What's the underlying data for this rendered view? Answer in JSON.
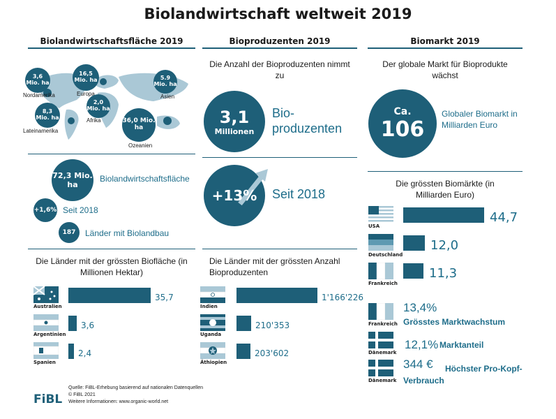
{
  "title": "Biolandwirtschaft weltweit 2019",
  "col1": {
    "heading": "Biolandwirtschaftsfläche 2019",
    "regions": [
      {
        "value": "3,6 Mio. ha",
        "label": "Nordamerika"
      },
      {
        "value": "16,5 Mio. ha",
        "label": "Europa"
      },
      {
        "value": "5.9 Mio. ha",
        "label": "Asien"
      },
      {
        "value": "8,3 Mio. ha",
        "label": "Lateinamerika"
      },
      {
        "value": "2,0 Mio. ha",
        "label": "Afrika"
      },
      {
        "value": "36,0 Mio. ha",
        "label": "Ozeanien"
      }
    ],
    "total_value": "72,3 Mio. ha",
    "total_label": "Biolandwirtschaftsfläche",
    "growth_value": "+1,6%",
    "growth_label": "Seit 2018",
    "countries_value": "187",
    "countries_label": "Länder mit Biolandbau",
    "chart_heading": "Die Länder mit der grössten Biofläche (in Millionen Hektar)"
  },
  "col2": {
    "heading": "Bioproduzenten 2019",
    "subtitle": "Die Anzahl der Bioproduzenten nimmt zu",
    "producers_value": "3,1",
    "producers_unit": "Millionen",
    "producers_label": "Bio-produzenten",
    "growth_value": "+13%",
    "growth_label": "Seit 2018",
    "chart_heading": "Die Länder mit der grössten Anzahl Bioproduzenten"
  },
  "col3": {
    "heading": "Biomarkt 2019",
    "subtitle": "Der globale Markt für Bioprodukte wächst",
    "market_prefix": "Ca.",
    "market_value": "106",
    "market_label": "Globaler Biomarkt in Milliarden Euro",
    "chart_heading": "Die grössten Biomärkte (in Milliarden Euro)",
    "facts": [
      {
        "country": "Frankreich",
        "value": "13,4%",
        "label": "Grösstes Marktwachstum"
      },
      {
        "country": "Dänemark",
        "value": "12,1%",
        "label": "Marktanteil"
      },
      {
        "country": "Dänemark",
        "value": "344 €",
        "label": "Höchster Pro-Kopf-Verbrauch"
      }
    ]
  },
  "footer": {
    "logo": "FiBL",
    "source": "Quelle: FiBL-Erhebung basierend auf nationalen Datenquellen",
    "copyright": "© FiBL 2021",
    "info": "Weitere Informationen: www.organic-world.net"
  },
  "colors": {
    "primary": "#1e5f78",
    "accent": "#1e6d8a",
    "light": "#aac8d6"
  },
  "chart_data": [
    {
      "type": "bar",
      "title": "Die Länder mit der grössten Biofläche (in Millionen Hektar)",
      "categories": [
        "Australien",
        "Argentinien",
        "Spanien"
      ],
      "values": [
        35.7,
        3.6,
        2.4
      ],
      "labels": [
        "35,7",
        "3,6",
        "2,4"
      ]
    },
    {
      "type": "bar",
      "title": "Die Länder mit der grössten Anzahl Bioproduzenten",
      "categories": [
        "Indien",
        "Uganda",
        "Äthiopien"
      ],
      "values": [
        1166226,
        210353,
        203602
      ],
      "labels": [
        "1'166'226",
        "210'353",
        "203'602"
      ]
    },
    {
      "type": "bar",
      "title": "Die grössten Biomärkte (in Milliarden Euro)",
      "categories": [
        "USA",
        "Deutschland",
        "Frankreich"
      ],
      "values": [
        44.7,
        12.0,
        11.3
      ],
      "labels": [
        "44,7",
        "12,0",
        "11,3"
      ]
    }
  ]
}
